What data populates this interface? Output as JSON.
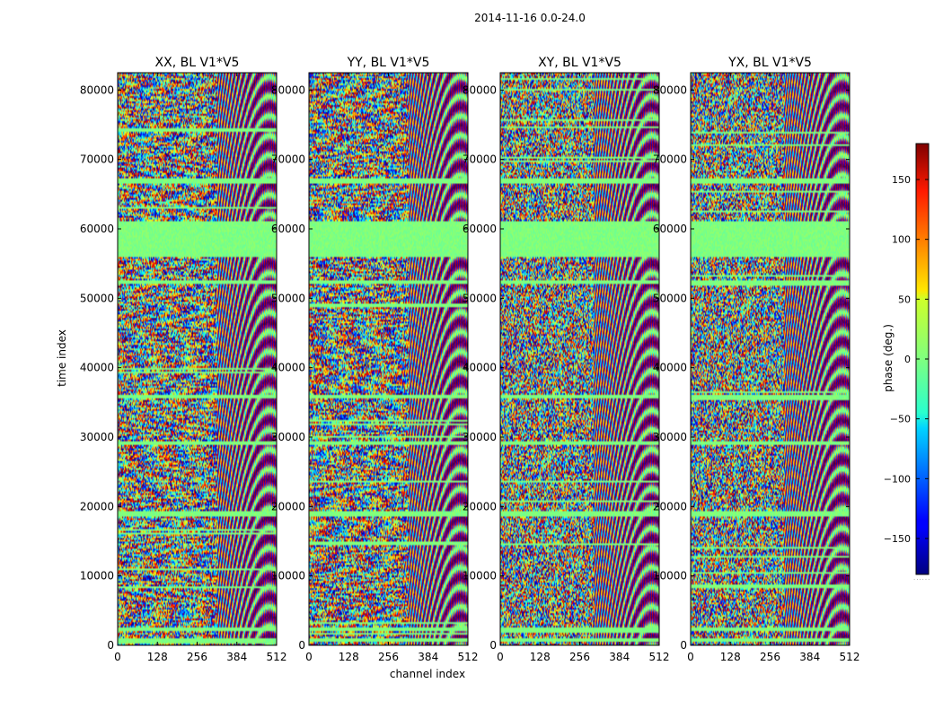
{
  "chart_data": {
    "type": "heatmap",
    "title": "2014-11-16 0.0-24.0",
    "xlabel": "channel index",
    "ylabel": "time index",
    "colorbar": {
      "label": "phase (deg.)",
      "range": [
        -180,
        180
      ],
      "ticks": [
        -150,
        -100,
        -50,
        0,
        50,
        100,
        150
      ],
      "tick_labels": [
        "−150",
        "−100",
        "−50",
        "0",
        "50",
        "100",
        "150"
      ],
      "colormap": "jet",
      "footer": "......"
    },
    "xlim": [
      0,
      512
    ],
    "ylim": [
      0,
      82500
    ],
    "x_ticks": [
      0,
      128,
      256,
      384,
      512
    ],
    "x_tick_labels": [
      "0",
      "128",
      "256",
      "384",
      "512"
    ],
    "y_ticks": [
      0,
      10000,
      20000,
      30000,
      40000,
      50000,
      60000,
      70000,
      80000
    ],
    "y_tick_labels": [
      "0",
      "10000",
      "20000",
      "30000",
      "40000",
      "50000",
      "60000",
      "70000",
      "80000"
    ],
    "panels": [
      {
        "title": "XX, BL V1*V5",
        "pol": "XX"
      },
      {
        "title": "YY, BL V1*V5",
        "pol": "YY"
      },
      {
        "title": "XY, BL V1*V5",
        "pol": "XY"
      },
      {
        "title": "YX, BL V1*V5",
        "pol": "YX"
      }
    ],
    "flagged_time_ranges": [
      [
        56000,
        61000
      ],
      [
        66500,
        67300
      ],
      [
        52000,
        52600
      ],
      [
        35500,
        36200
      ],
      [
        18500,
        19300
      ],
      [
        2000,
        2700
      ],
      [
        500,
        1000
      ],
      [
        29000,
        29500
      ]
    ],
    "colors": {
      "flagged": "#7fff7f",
      "frame": "#000000"
    }
  }
}
